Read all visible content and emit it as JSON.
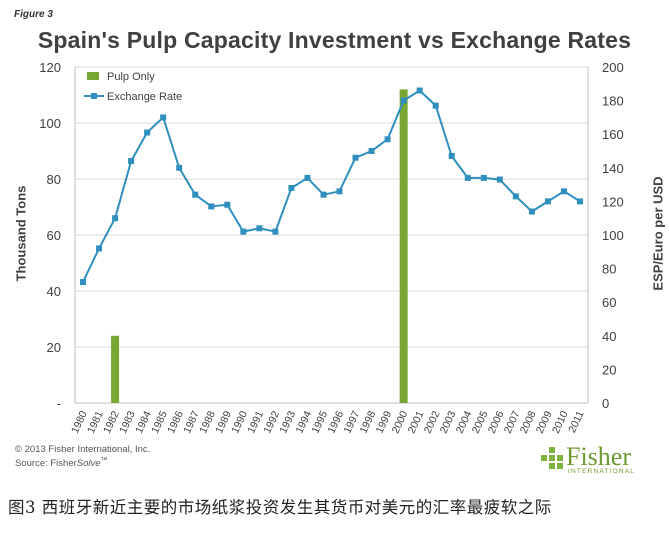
{
  "figure_label": "Figure 3",
  "caption": "图3 西班牙新近主要的市场纸浆投资发生其货币对美元的汇率最疲软之际",
  "footer": {
    "copyright": "© 2013 Fisher International, Inc.",
    "source_prefix": "Source: Fisher",
    "source_italic": "Solve",
    "source_tm": "™"
  },
  "logo": {
    "name": "Fisher",
    "subtitle": "INTERNATIONAL",
    "icon": "fisher-grid-logo"
  },
  "colors": {
    "bar": "#78a832",
    "line": "#2f8fbe",
    "grid": "#d9d9d9",
    "axis": "#bfbfbf",
    "text": "#404040"
  },
  "chart_data": {
    "type": "bar+line",
    "title": "Spain's Pulp Capacity Investment vs Exchange Rates",
    "ylabel_left": "Thousand Tons",
    "ylabel_right": "ESP/Euro per USD",
    "left_ticks": [
      "-",
      "20",
      "40",
      "60",
      "80",
      "100",
      "120"
    ],
    "right_ticks": [
      "0",
      "20",
      "40",
      "60",
      "80",
      "100",
      "120",
      "140",
      "160",
      "180",
      "200"
    ],
    "ylim_left": [
      0,
      120
    ],
    "ylim_right": [
      0,
      200
    ],
    "categories": [
      "1980",
      "1981",
      "1982",
      "1983",
      "1984",
      "1985",
      "1986",
      "1987",
      "1988",
      "1989",
      "1990",
      "1991",
      "1992",
      "1993",
      "1994",
      "1995",
      "1996",
      "1997",
      "1998",
      "1999",
      "2000",
      "2001",
      "2002",
      "2003",
      "2004",
      "2005",
      "2006",
      "2007",
      "2008",
      "2009",
      "2010",
      "2011"
    ],
    "series": [
      {
        "name": "Pulp Only",
        "type": "bar",
        "axis": "left",
        "values": [
          0,
          0,
          24,
          0,
          0,
          0,
          0,
          0,
          0,
          0,
          0,
          0,
          0,
          0,
          0,
          0,
          0,
          0,
          0,
          0,
          112,
          0,
          0,
          0,
          0,
          0,
          0,
          0,
          0,
          0,
          0,
          0
        ]
      },
      {
        "name": "Exchange Rate",
        "type": "line",
        "axis": "right",
        "values": [
          72,
          92,
          110,
          144,
          161,
          170,
          140,
          124,
          117,
          118,
          102,
          104,
          102,
          128,
          134,
          124,
          126,
          146,
          150,
          157,
          180,
          186,
          177,
          147,
          134,
          134,
          133,
          123,
          114,
          120,
          126,
          120
        ]
      }
    ],
    "legend_position": "top-left",
    "grid": true
  }
}
